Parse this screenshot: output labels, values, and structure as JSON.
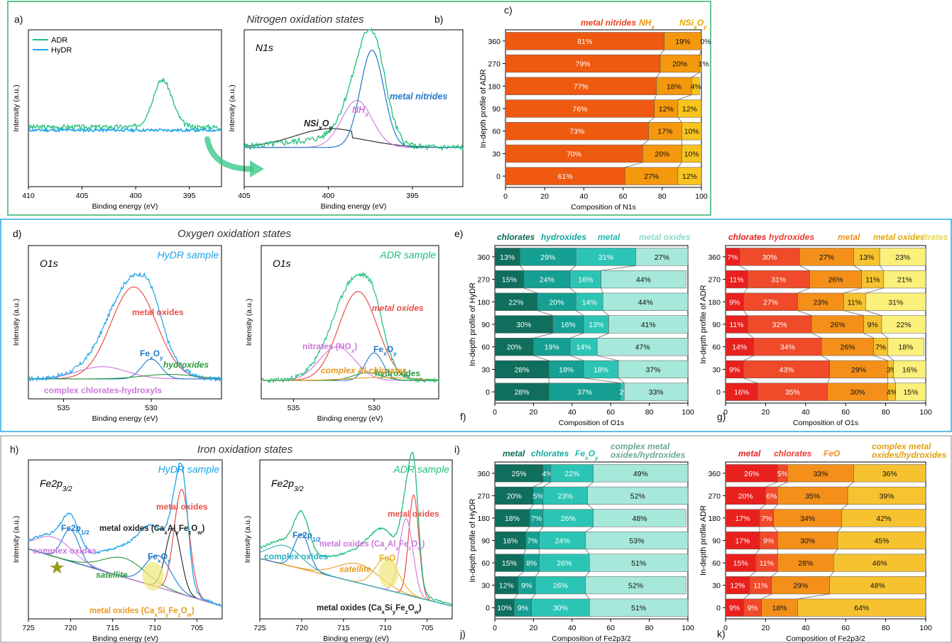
{
  "panel_letters": {
    "a": "a)",
    "b": "b)",
    "c": "c)",
    "d": "d)",
    "e": "e)",
    "f": "f)",
    "g": "g)",
    "h": "h)",
    "i": "i)",
    "j": "j)",
    "k": "k)"
  },
  "section_titles": {
    "nitrogen": "Nitrogen oxidation states",
    "oxygen": "Oxygen oxidation states",
    "iron": "Iron oxidation states"
  },
  "colors": {
    "box_nitrogen": "#2fb46a",
    "box_oxygen": "#29a8e0",
    "box_iron": "#888888",
    "adr": "#1dbf7a",
    "hydr": "#1aa3e8",
    "fit_red": "#e8504a",
    "fit_purple": "#cc77dd",
    "fit_blue": "#1f78c8",
    "fit_green": "#2a9a3a",
    "fit_orange": "#e89a20",
    "fit_black": "#222222",
    "arrow": "#3cc88a"
  },
  "spectra": [
    {
      "id": "a",
      "ylabel": "Intensity (a.u.)",
      "xlabel": "Binding energy (eV)",
      "xlim": [
        410,
        392
      ],
      "ticks": [
        410,
        405,
        400,
        395
      ],
      "legend": [
        {
          "name": "ADR",
          "color": "#1dbf7a"
        },
        {
          "name": "HyDR",
          "color": "#1aa3e8"
        }
      ]
    },
    {
      "id": "b",
      "ylabel": "Intensity (a.u.)",
      "xlabel": "Binding energy (eV)",
      "xlim": [
        405,
        392
      ],
      "ticks": [
        405,
        400,
        395
      ],
      "inset_label": "N1s",
      "annotations": [
        {
          "text": "metal nitrides",
          "color": "#1f78c8"
        },
        {
          "text": "NHx",
          "color": "#cc77dd"
        },
        {
          "text": "NSixOy",
          "color": "#222222"
        }
      ]
    },
    {
      "id": "d1",
      "ylabel": "Intensity (a.u.)",
      "xlabel": "Binding energy (eV)",
      "xlim": [
        537,
        526
      ],
      "ticks": [
        535,
        530
      ],
      "inset_label": "O1s",
      "sample_label": "HyDR sample",
      "annotations": [
        {
          "text": "metal oxides",
          "color": "#e8504a"
        },
        {
          "text": "FexOy",
          "color": "#1f78c8"
        },
        {
          "text": "hydroxides",
          "color": "#2a9a3a"
        },
        {
          "text": "complex chlorates-hydroxyls",
          "color": "#cc77dd"
        }
      ]
    },
    {
      "id": "d2",
      "ylabel": "Intensity (a.u.)",
      "xlabel": "Binding energy (eV)",
      "xlim": [
        537,
        526
      ],
      "ticks": [
        535,
        530
      ],
      "inset_label": "O1s",
      "sample_label": "ADR sample",
      "annotations": [
        {
          "text": "metal oxides",
          "color": "#e8504a"
        },
        {
          "text": "nitrates (NOx)",
          "color": "#cc77dd"
        },
        {
          "text": "FexOy",
          "color": "#1f78c8"
        },
        {
          "text": "hydroxides",
          "color": "#2a9a3a"
        },
        {
          "text": "complex Al-chlorates",
          "color": "#e89a20"
        }
      ]
    },
    {
      "id": "h1",
      "ylabel": "Intensity (a.u.)",
      "xlabel": "Binding energy (eV)",
      "xlim": [
        725,
        702
      ],
      "ticks": [
        725,
        720,
        715,
        710,
        705
      ],
      "inset_label": "Fe2p3/2",
      "sample_label": "HyDR sample",
      "annotations": [
        {
          "text": "metal oxides",
          "color": "#e8504a"
        },
        {
          "text": "Fe2p1/2",
          "color": "#1f78c8"
        },
        {
          "text": "metal oxides (CaxAlyFezOw)",
          "color": "#222222"
        },
        {
          "text": "complex oxides",
          "color": "#cc77dd"
        },
        {
          "text": "FexOy",
          "color": "#1f78c8"
        },
        {
          "text": "satellite",
          "color": "#2a9a3a"
        },
        {
          "text": "metal oxides (CaxSiyFezOw)",
          "color": "#e89a20"
        }
      ]
    },
    {
      "id": "h2",
      "ylabel": "Intensity (a.u.)",
      "xlabel": "Binding energy (eV)",
      "xlim": [
        725,
        702
      ],
      "ticks": [
        725,
        720,
        715,
        710,
        705
      ],
      "inset_label": "Fe2p3/2",
      "sample_label": "ADR sample",
      "annotations": [
        {
          "text": "metal oxides",
          "color": "#e8504a"
        },
        {
          "text": "Fe2p1/2",
          "color": "#1f78c8"
        },
        {
          "text": "metal oxides (CaxAlyFezOw)",
          "color": "#cc77dd"
        },
        {
          "text": "complex oxides",
          "color": "#29b0c0"
        },
        {
          "text": "FeO",
          "color": "#e8b020"
        },
        {
          "text": "satellite",
          "color": "#e89a20"
        },
        {
          "text": "metal oxides (CaxSiyFezOw)",
          "color": "#222222"
        }
      ]
    }
  ],
  "chart_data": [
    {
      "id": "c",
      "type": "bar",
      "orientation": "horizontal-stacked",
      "xlabel": "Composition of N1s",
      "ylabel": "In-depth profile of ADR",
      "xlim": [
        0,
        100
      ],
      "xticks": [
        0,
        20,
        40,
        60,
        80,
        100
      ],
      "categories": [
        "360",
        "270",
        "180",
        "90",
        "60",
        "30",
        "0"
      ],
      "series": [
        {
          "name": "metal nitrides",
          "color": "#ef5a10",
          "label_color": "#e8401a",
          "values": [
            81,
            79,
            77,
            76,
            73,
            70,
            61
          ]
        },
        {
          "name": "NHx",
          "color": "#f4980e",
          "label_color": "#f0900a",
          "values": [
            19,
            20,
            18,
            12,
            17,
            20,
            27
          ]
        },
        {
          "name": "NSixOy",
          "color": "#f8c41e",
          "label_color": "#e0a800",
          "values": [
            0,
            1,
            4,
            12,
            10,
            10,
            12
          ]
        }
      ]
    },
    {
      "id": "f",
      "type": "bar",
      "orientation": "horizontal-stacked",
      "xlabel": "Composition of O1s",
      "ylabel": "In-depth profile of HyDR",
      "xlim": [
        0,
        100
      ],
      "xticks": [
        0,
        20,
        40,
        60,
        80,
        100
      ],
      "categories": [
        "360",
        "270",
        "180",
        "90",
        "60",
        "30",
        "0"
      ],
      "series": [
        {
          "name": "chlorates",
          "color": "#0f6e5c",
          "label_color": "#0a6a55",
          "values": [
            13,
            15,
            22,
            30,
            20,
            28,
            28
          ]
        },
        {
          "name": "hydroxides",
          "color": "#15a093",
          "label_color": "#15a6a0",
          "values": [
            29,
            24,
            20,
            16,
            19,
            18,
            37
          ]
        },
        {
          "name": "metal",
          "color": "#2cc5b5",
          "label_color": "#20b8b0",
          "values": [
            31,
            16,
            14,
            13,
            14,
            18,
            2
          ]
        },
        {
          "name": "metal oxides",
          "color": "#a6e8da",
          "label_color": "#90d8c8",
          "values": [
            27,
            44,
            44,
            41,
            47,
            37,
            33
          ]
        }
      ]
    },
    {
      "id": "g",
      "type": "bar",
      "orientation": "horizontal-stacked",
      "xlabel": "Composition of O1s",
      "ylabel": "In-depth profile of ADR",
      "xlim": [
        0,
        100
      ],
      "xticks": [
        0,
        20,
        40,
        60,
        80,
        100
      ],
      "categories": [
        "360",
        "270",
        "180",
        "90",
        "60",
        "30",
        "0"
      ],
      "series": [
        {
          "name": "chlorates",
          "color": "#e8201e",
          "label_color": "#e02020",
          "values": [
            7,
            11,
            9,
            11,
            14,
            9,
            16
          ]
        },
        {
          "name": "hydroxides",
          "color": "#ef4a2a",
          "label_color": "#e84030",
          "values": [
            30,
            31,
            27,
            32,
            34,
            43,
            35
          ]
        },
        {
          "name": "metal",
          "color": "#f4901a",
          "label_color": "#f09020",
          "values": [
            27,
            26,
            23,
            26,
            26,
            29,
            30
          ]
        },
        {
          "name": "metal oxides",
          "color": "#f6c230",
          "label_color": "#e0a810",
          "values": [
            13,
            11,
            11,
            9,
            7,
            3,
            4
          ]
        },
        {
          "name": "nitrates",
          "color": "#fbf07a",
          "label_color": "#e6d650",
          "values": [
            23,
            21,
            31,
            22,
            18,
            16,
            15
          ]
        }
      ]
    },
    {
      "id": "j",
      "type": "bar",
      "orientation": "horizontal-stacked",
      "xlabel": "Composition of Fe2p3/2",
      "ylabel": "In-depth profile of HyDR",
      "xlim": [
        0,
        100
      ],
      "xticks": [
        0,
        20,
        40,
        60,
        80,
        100
      ],
      "categories": [
        "360",
        "270",
        "180",
        "90",
        "60",
        "30",
        "0"
      ],
      "series": [
        {
          "name": "metal",
          "color": "#0f6e5c",
          "label_color": "#0a6a55",
          "values": [
            25,
            20,
            18,
            16,
            15,
            12,
            10
          ]
        },
        {
          "name": "chlorates",
          "color": "#15a093",
          "label_color": "#15a6a0",
          "values": [
            4,
            5,
            7,
            7,
            8,
            9,
            9
          ]
        },
        {
          "name": "FexOy",
          "color": "#2cc5b5",
          "label_color": "#20b8b0",
          "values": [
            22,
            23,
            26,
            24,
            26,
            26,
            30
          ]
        },
        {
          "name": "complex metal oxides/hydroxides",
          "color": "#a6e8da",
          "label_color": "#6aa898",
          "values": [
            49,
            52,
            48,
            53,
            51,
            52,
            51
          ]
        }
      ]
    },
    {
      "id": "k",
      "type": "bar",
      "orientation": "horizontal-stacked",
      "xlabel": "Composition of Fe2p3/2",
      "ylabel": "In-depth profile ADR",
      "xlim": [
        0,
        100
      ],
      "xticks": [
        0,
        20,
        40,
        60,
        80,
        100
      ],
      "categories": [
        "360",
        "270",
        "180",
        "90",
        "60",
        "30",
        "0"
      ],
      "series": [
        {
          "name": "metal",
          "color": "#e8201e",
          "label_color": "#e02020",
          "values": [
            26,
            20,
            17,
            17,
            15,
            12,
            9
          ]
        },
        {
          "name": "chlorates",
          "color": "#ef4a2a",
          "label_color": "#e84030",
          "values": [
            5,
            6,
            7,
            9,
            11,
            11,
            9
          ]
        },
        {
          "name": "FeO",
          "color": "#f4901a",
          "label_color": "#f09020",
          "values": [
            33,
            35,
            34,
            30,
            28,
            29,
            18
          ]
        },
        {
          "name": "complex metal oxides/hydroxides",
          "color": "#f6c230",
          "label_color": "#e0a010",
          "values": [
            36,
            39,
            42,
            45,
            46,
            48,
            64
          ]
        }
      ]
    }
  ]
}
